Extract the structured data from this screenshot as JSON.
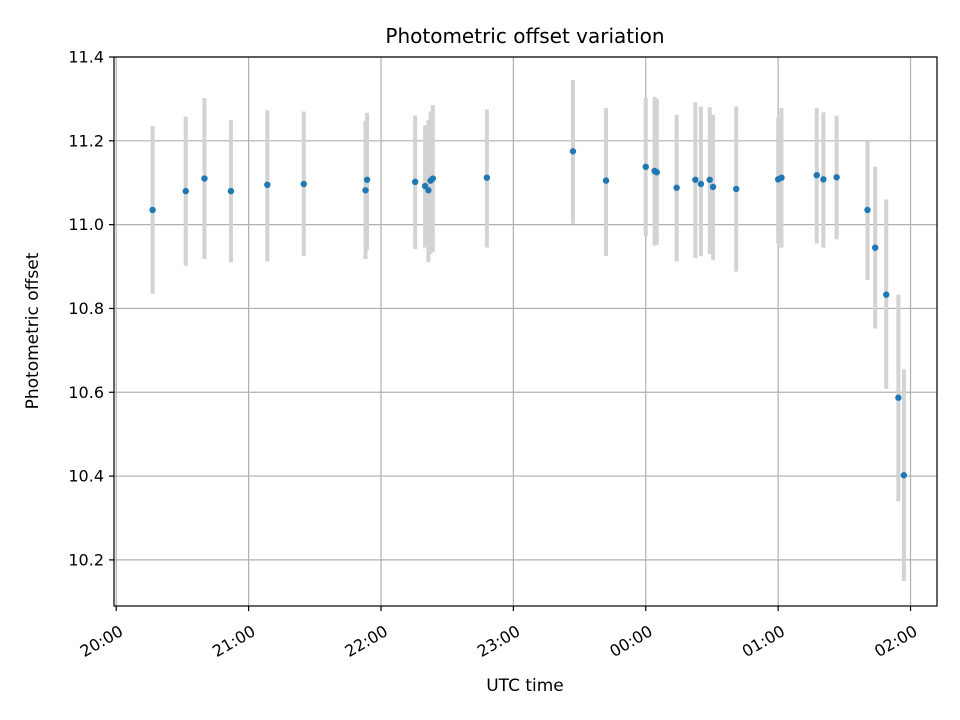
{
  "chart_data": {
    "type": "scatter",
    "title": "Photometric offset variation",
    "xlabel": "UTC time",
    "ylabel": "Photometric offset",
    "grid": true,
    "x_ticks": [
      "20:00",
      "21:00",
      "22:00",
      "23:00",
      "00:00",
      "01:00",
      "02:00"
    ],
    "y_ticks": [
      "10.2",
      "10.4",
      "10.6",
      "10.8",
      "11.0",
      "11.2",
      "11.4"
    ],
    "xlim_minutes": [
      -1,
      372
    ],
    "ylim": [
      10.09,
      11.4
    ],
    "point_color": "#1f77b4",
    "errorbar_color": "#d3d3d3",
    "points": [
      {
        "t": 16.5,
        "y": 11.035,
        "lo": 10.835,
        "hi": 11.235
      },
      {
        "t": 31.5,
        "y": 11.08,
        "lo": 10.902,
        "hi": 11.258
      },
      {
        "t": 40.0,
        "y": 11.11,
        "lo": 10.918,
        "hi": 11.302
      },
      {
        "t": 52.0,
        "y": 11.08,
        "lo": 10.91,
        "hi": 11.25
      },
      {
        "t": 68.5,
        "y": 11.095,
        "lo": 10.912,
        "hi": 11.273
      },
      {
        "t": 85.0,
        "y": 11.097,
        "lo": 10.925,
        "hi": 11.27
      },
      {
        "t": 113.0,
        "y": 11.082,
        "lo": 10.918,
        "hi": 11.248
      },
      {
        "t": 113.7,
        "y": 11.107,
        "lo": 10.94,
        "hi": 11.267
      },
      {
        "t": 135.5,
        "y": 11.102,
        "lo": 10.942,
        "hi": 11.26
      },
      {
        "t": 140.0,
        "y": 11.092,
        "lo": 10.945,
        "hi": 11.237
      },
      {
        "t": 141.5,
        "y": 11.082,
        "lo": 10.91,
        "hi": 11.25
      },
      {
        "t": 142.5,
        "y": 11.105,
        "lo": 10.93,
        "hi": 11.27
      },
      {
        "t": 143.5,
        "y": 11.11,
        "lo": 10.935,
        "hi": 11.285
      },
      {
        "t": 168.0,
        "y": 11.112,
        "lo": 10.945,
        "hi": 11.275
      },
      {
        "t": 207.0,
        "y": 11.175,
        "lo": 11.002,
        "hi": 11.345
      },
      {
        "t": 222.0,
        "y": 11.105,
        "lo": 10.925,
        "hi": 11.278
      },
      {
        "t": 240.0,
        "y": 11.138,
        "lo": 10.972,
        "hi": 11.302
      },
      {
        "t": 244.0,
        "y": 11.128,
        "lo": 10.95,
        "hi": 11.305
      },
      {
        "t": 245.0,
        "y": 11.125,
        "lo": 10.952,
        "hi": 11.3
      },
      {
        "t": 254.0,
        "y": 11.088,
        "lo": 10.912,
        "hi": 11.262
      },
      {
        "t": 262.5,
        "y": 11.107,
        "lo": 10.92,
        "hi": 11.292
      },
      {
        "t": 265.0,
        "y": 11.097,
        "lo": 10.925,
        "hi": 11.282
      },
      {
        "t": 269.0,
        "y": 11.107,
        "lo": 10.93,
        "hi": 11.28
      },
      {
        "t": 270.5,
        "y": 11.09,
        "lo": 10.915,
        "hi": 11.262
      },
      {
        "t": 281.0,
        "y": 11.085,
        "lo": 10.888,
        "hi": 11.282
      },
      {
        "t": 300.0,
        "y": 11.108,
        "lo": 10.955,
        "hi": 11.255
      },
      {
        "t": 301.5,
        "y": 11.112,
        "lo": 10.945,
        "hi": 11.278
      },
      {
        "t": 317.5,
        "y": 11.118,
        "lo": 10.955,
        "hi": 11.278
      },
      {
        "t": 320.5,
        "y": 11.108,
        "lo": 10.945,
        "hi": 11.268
      },
      {
        "t": 326.5,
        "y": 11.113,
        "lo": 10.965,
        "hi": 11.26
      },
      {
        "t": 340.5,
        "y": 11.035,
        "lo": 10.868,
        "hi": 11.2
      },
      {
        "t": 344.0,
        "y": 10.945,
        "lo": 10.752,
        "hi": 11.138
      },
      {
        "t": 349.0,
        "y": 10.833,
        "lo": 10.608,
        "hi": 11.06
      },
      {
        "t": 354.5,
        "y": 10.587,
        "lo": 10.34,
        "hi": 10.833
      },
      {
        "t": 357.0,
        "y": 10.402,
        "lo": 10.15,
        "hi": 10.655
      }
    ]
  }
}
